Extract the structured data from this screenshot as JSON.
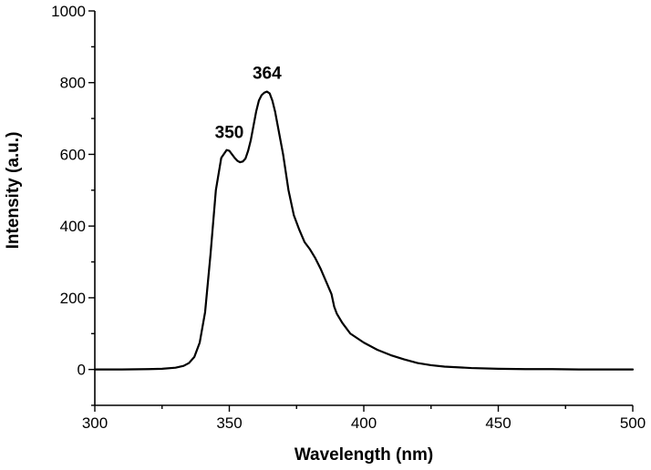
{
  "chart_data": {
    "type": "line",
    "title": "",
    "xlabel": "Wavelength (nm)",
    "ylabel": "Intensity (a.u.)",
    "xlim": [
      300,
      500
    ],
    "ylim": [
      -100,
      1000
    ],
    "x_ticks": [
      300,
      350,
      400,
      450,
      500
    ],
    "y_ticks": [
      0,
      200,
      400,
      600,
      800,
      1000
    ],
    "x_tick_labels": [
      "300",
      "350",
      "400",
      "450",
      "500"
    ],
    "y_tick_labels": [
      "0",
      "200",
      "400",
      "600",
      "800",
      "1000"
    ],
    "grid": false,
    "legend": "none",
    "line_color": "#000000",
    "annotations": [
      {
        "text": "350",
        "x": 350,
        "y": 610
      },
      {
        "text": "364",
        "x": 364,
        "y": 775
      }
    ],
    "series": [
      {
        "x": [
          300,
          310,
          320,
          325,
          330,
          333,
          335,
          337,
          339,
          341,
          343,
          345,
          347,
          349,
          350,
          351,
          352,
          353,
          354,
          355,
          356,
          357,
          358,
          359,
          360,
          361,
          362,
          363,
          364,
          365,
          366,
          367,
          368,
          370,
          372,
          374,
          376,
          378,
          380,
          382,
          384,
          386,
          388,
          389,
          390,
          392,
          395,
          400,
          405,
          410,
          415,
          420,
          425,
          430,
          440,
          450,
          460,
          470,
          480,
          490,
          500
        ],
        "y": [
          0,
          0,
          1,
          2,
          5,
          10,
          18,
          35,
          75,
          160,
          320,
          500,
          590,
          612,
          610,
          600,
          590,
          582,
          578,
          580,
          588,
          610,
          640,
          680,
          720,
          750,
          765,
          772,
          775,
          770,
          750,
          720,
          680,
          600,
          500,
          430,
          390,
          355,
          335,
          310,
          280,
          245,
          210,
          175,
          155,
          130,
          100,
          75,
          55,
          40,
          28,
          18,
          12,
          8,
          4,
          2,
          1,
          1,
          0,
          0,
          0
        ]
      }
    ]
  }
}
